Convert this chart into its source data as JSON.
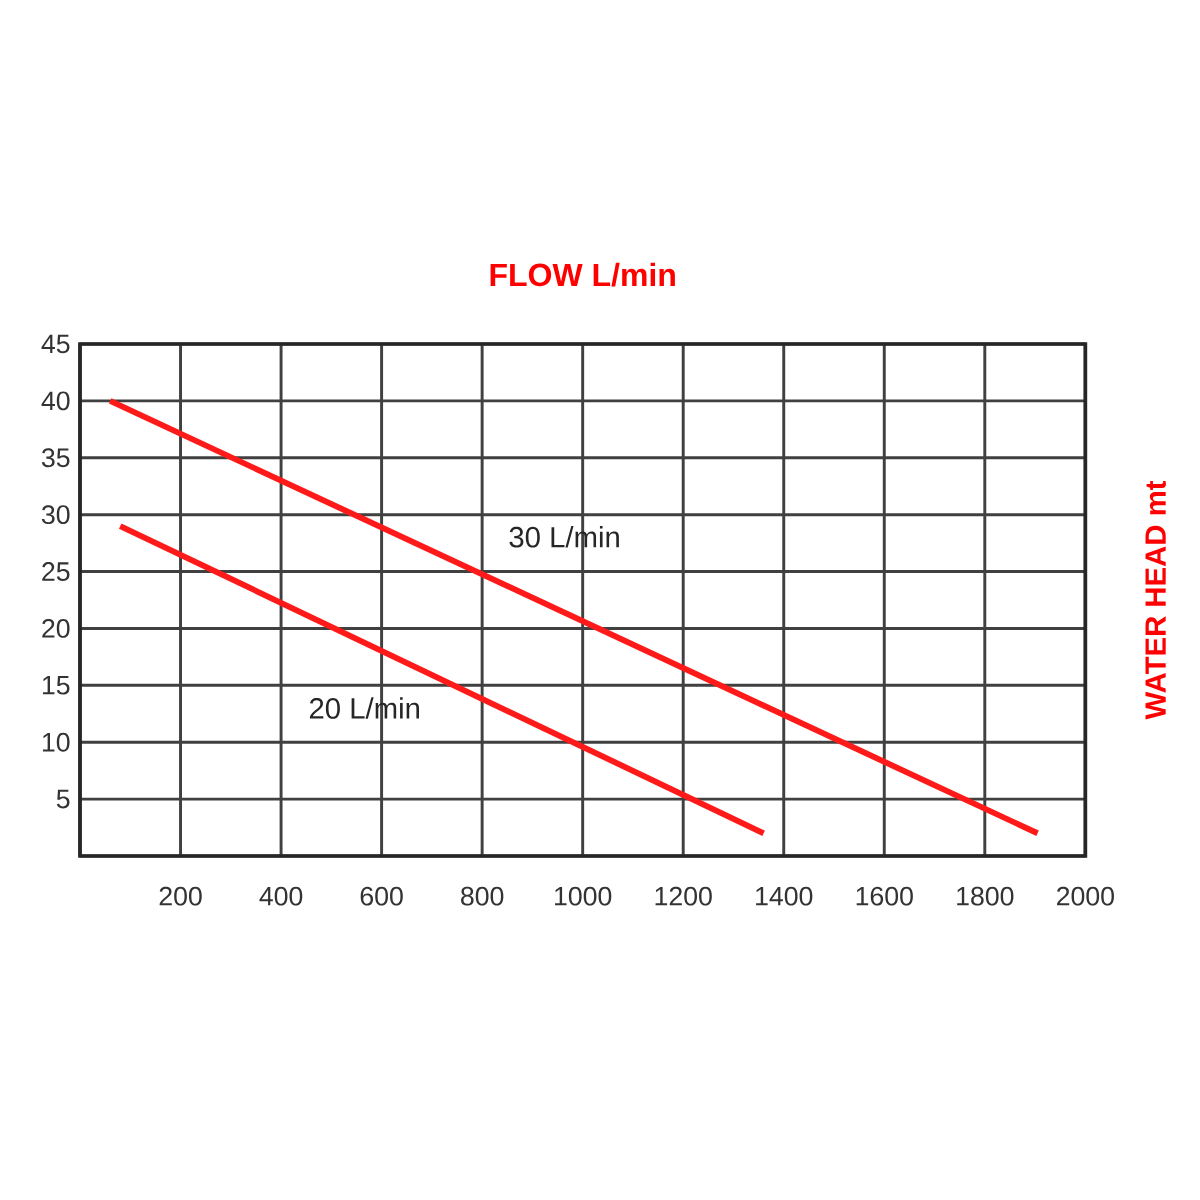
{
  "chart_data": {
    "type": "line",
    "title": "FLOW L/min",
    "ylabel": "WATER HEAD mt",
    "xlim": [
      0,
      2000
    ],
    "ylim": [
      0,
      45
    ],
    "xticks": [
      {
        "value": 0,
        "label": null
      },
      200,
      400,
      600,
      800,
      1000,
      1200,
      1400,
      1600,
      1800,
      2000
    ],
    "yticks": [
      {
        "value": 0,
        "label": null
      },
      5,
      10,
      15,
      20,
      25,
      30,
      35,
      40,
      45
    ],
    "grid": true,
    "legend": false,
    "marker": "none",
    "line_style": "solid",
    "series": [
      {
        "name": "30 L/min",
        "color": "#ff1a1a",
        "x": [
          60,
          1905
        ],
        "values": [
          40,
          2
        ]
      },
      {
        "name": "20 L/min",
        "color": "#ff1a1a",
        "x": [
          80,
          1360
        ],
        "values": [
          29,
          2
        ]
      }
    ]
  }
}
